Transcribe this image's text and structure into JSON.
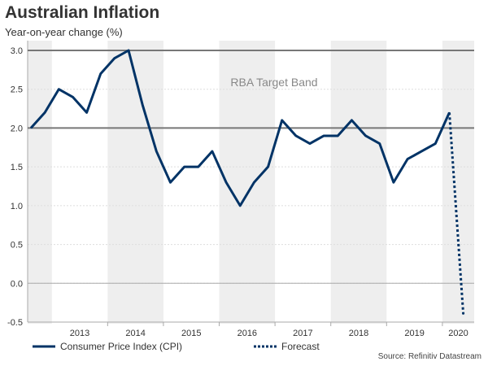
{
  "chart_data": {
    "type": "line",
    "title": "Australian Inflation",
    "subtitle": "Year-on-year change (%)",
    "xlabel": "",
    "ylabel": "Year-on-year change (%)",
    "ylim": [
      -0.5,
      3.0
    ],
    "yticks": [
      "3.0",
      "2.5",
      "2.0",
      "1.5",
      "1.0",
      "0.5",
      "0.0",
      "-0.5"
    ],
    "year_labels": [
      "2013",
      "2014",
      "2015",
      "2016",
      "2017",
      "2018",
      "2019",
      "2020"
    ],
    "grid": true,
    "target_band": {
      "label": "RBA Target Band",
      "low": 2.0,
      "high": 3.0
    },
    "x": [
      "2012Q3",
      "2012Q4",
      "2013Q1",
      "2013Q2",
      "2013Q3",
      "2013Q4",
      "2014Q1",
      "2014Q2",
      "2014Q3",
      "2014Q4",
      "2015Q1",
      "2015Q2",
      "2015Q3",
      "2015Q4",
      "2016Q1",
      "2016Q2",
      "2016Q3",
      "2016Q4",
      "2017Q1",
      "2017Q2",
      "2017Q3",
      "2017Q4",
      "2018Q1",
      "2018Q2",
      "2018Q3",
      "2018Q4",
      "2019Q1",
      "2019Q2",
      "2019Q3",
      "2019Q4",
      "2020Q1",
      "2020Q2"
    ],
    "series": [
      {
        "name": "Consumer Price Index (CPI)",
        "style": "solid",
        "color": "#003366",
        "values": [
          2.0,
          2.2,
          2.5,
          2.4,
          2.2,
          2.7,
          2.9,
          3.0,
          2.3,
          1.7,
          1.3,
          1.5,
          1.5,
          1.7,
          1.3,
          1.0,
          1.3,
          1.5,
          2.1,
          1.9,
          1.8,
          1.9,
          1.9,
          2.1,
          1.9,
          1.8,
          1.3,
          1.6,
          1.7,
          1.8,
          2.2,
          null
        ]
      },
      {
        "name": "Forecast",
        "style": "dotted",
        "color": "#003366",
        "values": [
          null,
          null,
          null,
          null,
          null,
          null,
          null,
          null,
          null,
          null,
          null,
          null,
          null,
          null,
          null,
          null,
          null,
          null,
          null,
          null,
          null,
          null,
          null,
          null,
          null,
          null,
          null,
          null,
          null,
          null,
          2.2,
          -0.4
        ]
      }
    ],
    "legend_position": "bottom",
    "source": "Source: Refinitiv Datastream"
  }
}
